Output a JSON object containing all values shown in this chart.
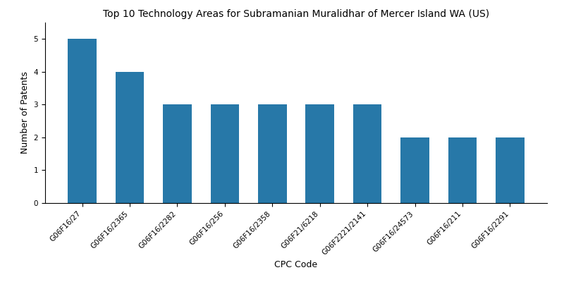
{
  "title": "Top 10 Technology Areas for Subramanian Muralidhar of Mercer Island WA (US)",
  "xlabel": "CPC Code",
  "ylabel": "Number of Patents",
  "categories": [
    "G06F16/27",
    "G06F16/2365",
    "G06F16/2282",
    "G06F16/256",
    "G06F16/2358",
    "G06F21/6218",
    "G06F2221/2141",
    "G06F16/24573",
    "G06F16/211",
    "G06F16/2291"
  ],
  "values": [
    5,
    4,
    3,
    3,
    3,
    3,
    3,
    2,
    2,
    2
  ],
  "bar_color": "#2778a8",
  "ylim": [
    0,
    5.5
  ],
  "yticks": [
    0,
    1,
    2,
    3,
    4,
    5
  ],
  "title_fontsize": 10,
  "label_fontsize": 9,
  "tick_fontsize": 7.5,
  "background_color": "#ffffff"
}
